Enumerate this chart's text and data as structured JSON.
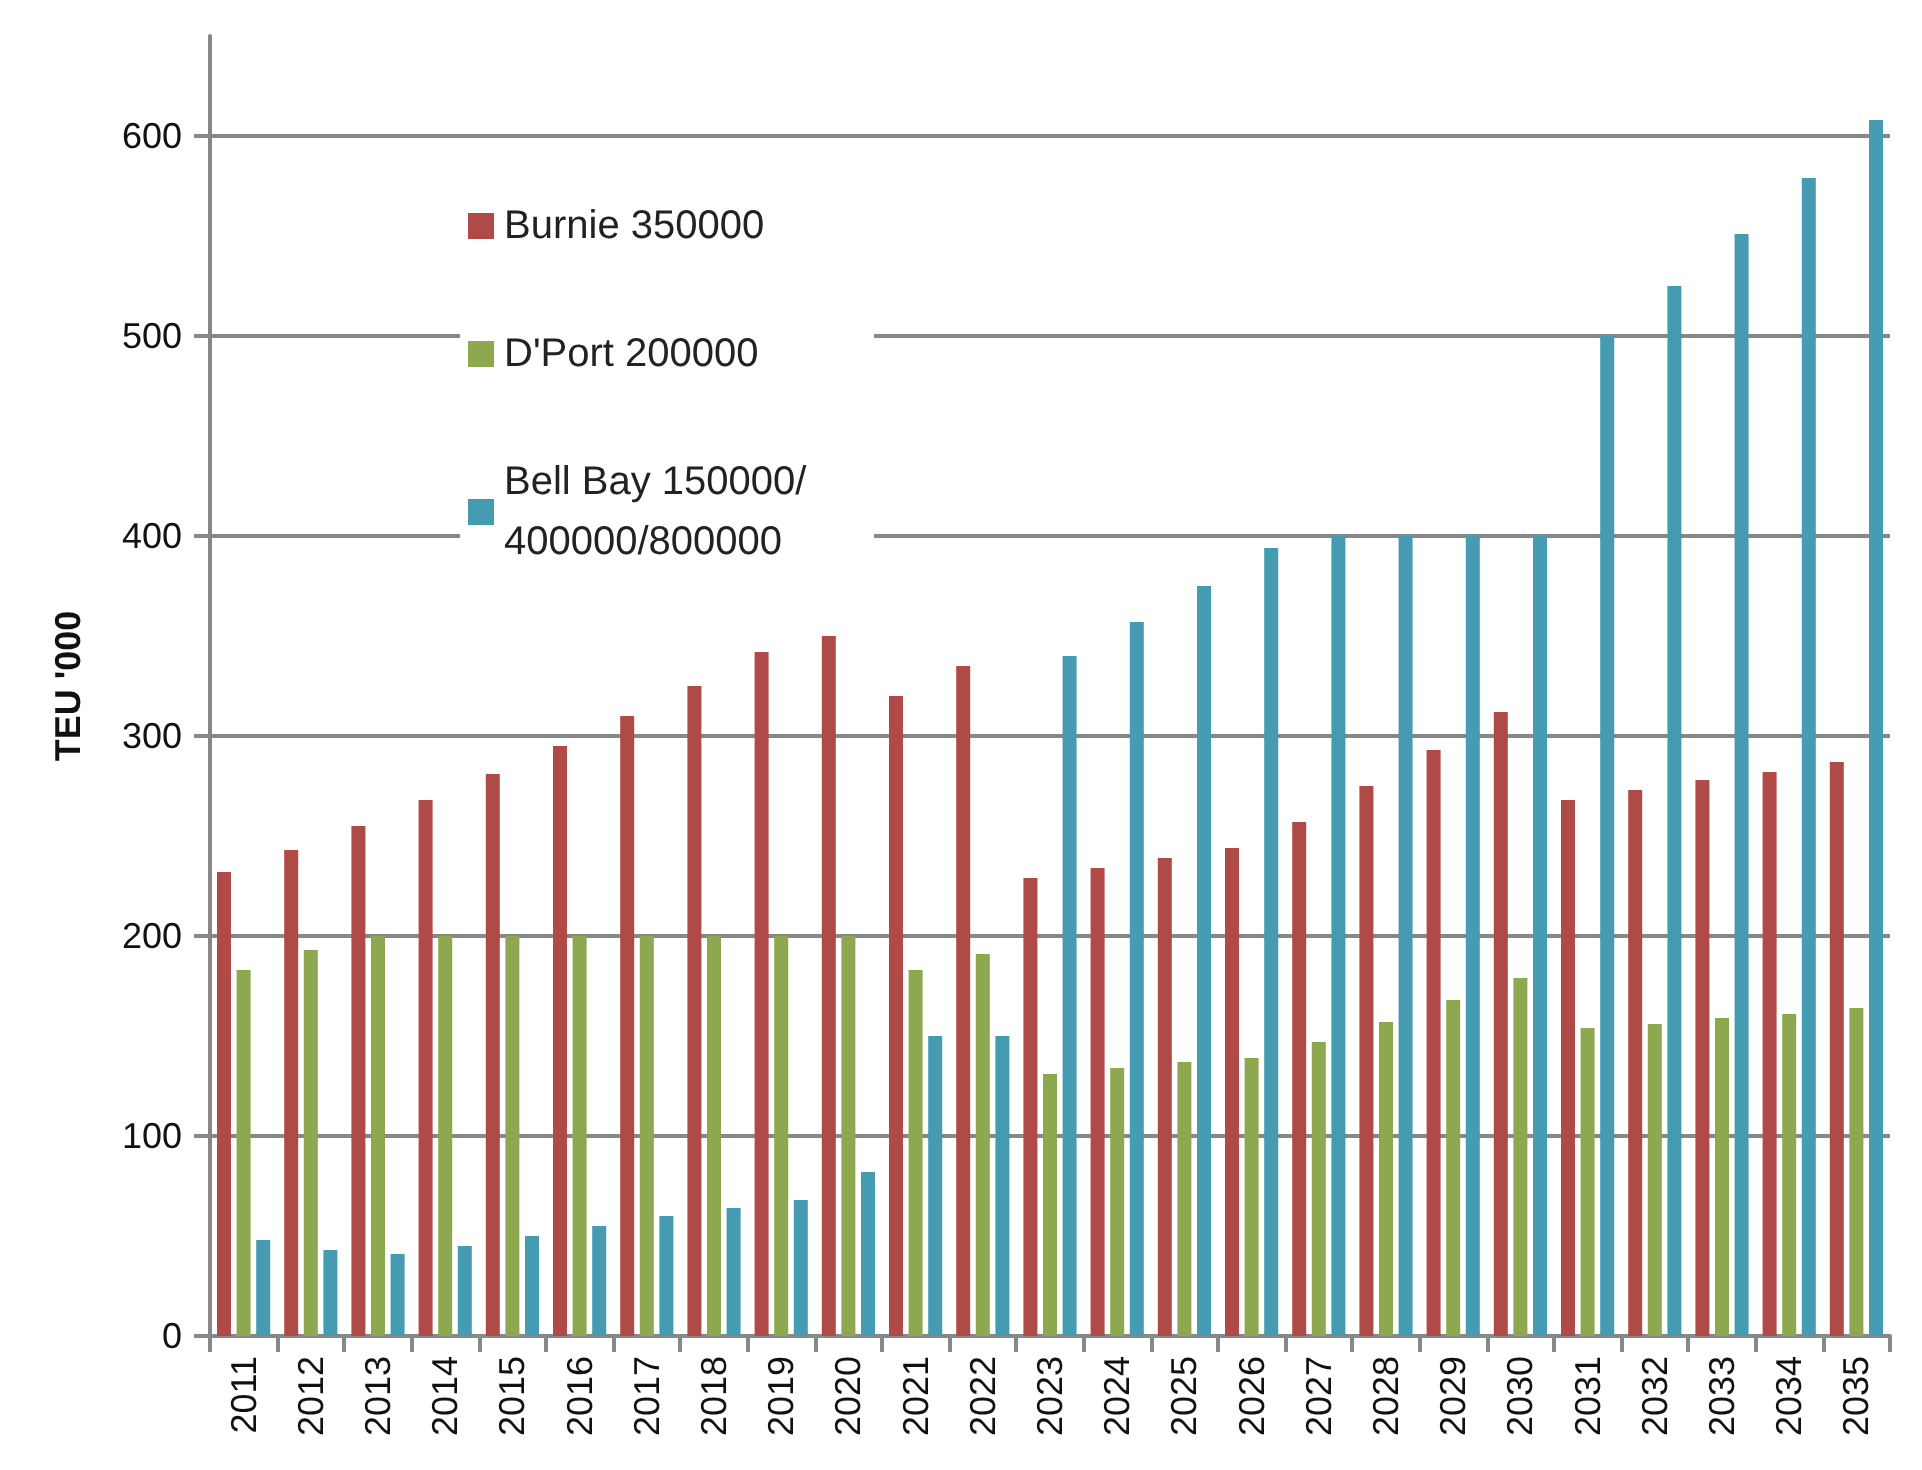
{
  "chart_data": {
    "type": "bar",
    "ylabel": "TEU '000",
    "categories": [
      "2011",
      "2012",
      "2013",
      "2014",
      "2015",
      "2016",
      "2017",
      "2018",
      "2019",
      "2020",
      "2021",
      "2022",
      "2023",
      "2024",
      "2025",
      "2026",
      "2027",
      "2028",
      "2029",
      "2030",
      "2031",
      "2032",
      "2033",
      "2034",
      "2035"
    ],
    "series": [
      {
        "name": "Burnie 350000",
        "color": "#b04a47",
        "values": [
          232,
          243,
          255,
          268,
          281,
          295,
          310,
          325,
          342,
          350,
          320,
          335,
          229,
          234,
          239,
          244,
          257,
          275,
          293,
          312,
          268,
          273,
          278,
          282,
          287
        ]
      },
      {
        "name": "D'Port 200000",
        "color": "#8ea84f",
        "values": [
          183,
          193,
          200,
          200,
          200,
          200,
          200,
          200,
          200,
          200,
          183,
          191,
          131,
          134,
          137,
          139,
          147,
          157,
          168,
          179,
          154,
          156,
          159,
          161,
          164
        ]
      },
      {
        "name": "Bell Bay 150000/ 400000/800000",
        "color": "#459bb2",
        "values": [
          48,
          43,
          41,
          45,
          50,
          55,
          60,
          64,
          68,
          82,
          150,
          150,
          340,
          357,
          375,
          394,
          400,
          400,
          400,
          400,
          500,
          525,
          551,
          579,
          608
        ]
      }
    ],
    "ylim": [
      0,
      650
    ],
    "yticks": [
      0,
      100,
      200,
      300,
      400,
      500,
      600
    ],
    "grid": "y",
    "legend": "top left"
  }
}
